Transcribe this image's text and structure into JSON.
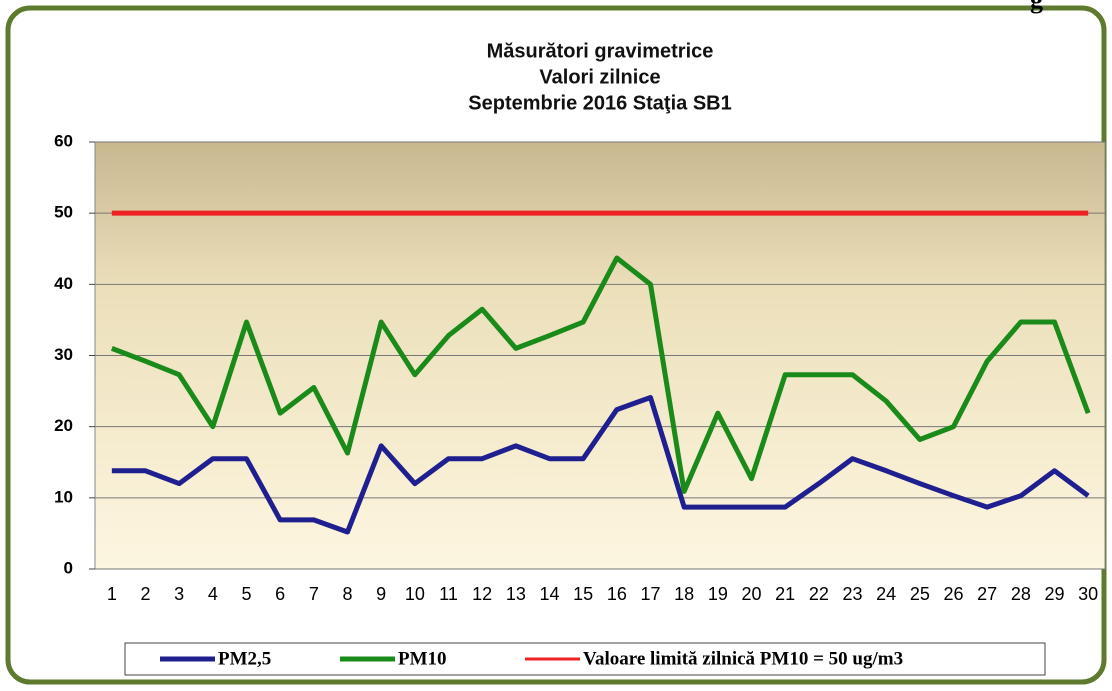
{
  "page_fragment": "g",
  "chart_data": {
    "type": "line",
    "title": [
      "Măsurători gravimetrice",
      "Valori zilnice",
      "Septembrie 2016 Staţia SB1"
    ],
    "categories": [
      "1",
      "2",
      "3",
      "4",
      "5",
      "6",
      "7",
      "8",
      "9",
      "10",
      "11",
      "12",
      "13",
      "14",
      "15",
      "16",
      "17",
      "18",
      "19",
      "20",
      "21",
      "22",
      "23",
      "24",
      "25",
      "26",
      "27",
      "28",
      "29",
      "30"
    ],
    "series": [
      {
        "name": "PM2,5",
        "color": "#1f1f8f",
        "values": [
          13.8,
          13.8,
          12,
          15.5,
          15.5,
          6.9,
          6.9,
          5.2,
          17.3,
          12,
          15.5,
          15.5,
          17.3,
          15.5,
          15.5,
          22.4,
          24.1,
          8.7,
          8.7,
          8.7,
          8.7,
          12,
          15.5,
          13.8,
          12,
          10.3,
          8.7,
          10.3,
          13.8,
          10.3
        ]
      },
      {
        "name": "PM10",
        "color": "#1a8a1a",
        "values": [
          31,
          29.2,
          27.3,
          20,
          34.7,
          21.9,
          25.5,
          16.3,
          34.7,
          27.3,
          32.8,
          36.5,
          31,
          32.8,
          34.7,
          43.7,
          40,
          10.9,
          21.9,
          12.7,
          27.3,
          27.3,
          27.3,
          23.6,
          18.2,
          20,
          29.2,
          34.7,
          34.7,
          21.9
        ]
      },
      {
        "name": "Valoare limită zilnică PM10 = 50 ug/m3",
        "color": "#ee2222",
        "values": [
          50,
          50,
          50,
          50,
          50,
          50,
          50,
          50,
          50,
          50,
          50,
          50,
          50,
          50,
          50,
          50,
          50,
          50,
          50,
          50,
          50,
          50,
          50,
          50,
          50,
          50,
          50,
          50,
          50,
          50
        ]
      }
    ],
    "ylim": [
      0,
      60
    ],
    "yticks": [
      0,
      10,
      20,
      30,
      40,
      50,
      60
    ],
    "grid": true,
    "legend": "bottom"
  }
}
